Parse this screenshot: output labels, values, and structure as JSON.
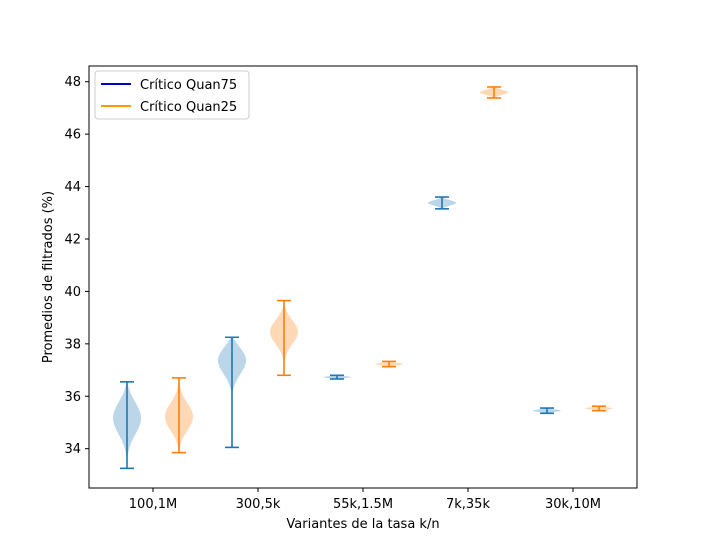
{
  "chart_data": {
    "type": "violin",
    "title": "",
    "xlabel": "Variantes de la tasa k/n",
    "ylabel": "Promedios de filtrados (%)",
    "categories": [
      "100,1M",
      "300,5k",
      "55k,1.5M",
      "7k,35k",
      "30k,10M"
    ],
    "y_ticks": [
      34,
      36,
      38,
      40,
      42,
      44,
      46,
      48
    ],
    "ylim": [
      32.5,
      48.6
    ],
    "legend_position": "top-left",
    "series": [
      {
        "name": "Crítico Quan75",
        "legend_color": "#0000cc",
        "line_color": "#1f77b4",
        "fill_color": "#1f77b4",
        "distributions": [
          {
            "min": 33.25,
            "max": 36.55,
            "mode": 35.25,
            "spread": 0.7
          },
          {
            "min": 34.05,
            "max": 38.25,
            "mode": 37.55,
            "spread": 0.55
          },
          {
            "min": 36.66,
            "max": 36.8,
            "mode": 36.73,
            "spread": 0.05
          },
          {
            "min": 43.15,
            "max": 43.6,
            "mode": 43.38,
            "spread": 0.12
          },
          {
            "min": 35.35,
            "max": 35.55,
            "mode": 35.45,
            "spread": 0.06
          }
        ]
      },
      {
        "name": "Crítico Quan25",
        "legend_color": "#ff9900",
        "line_color": "#ff7f0e",
        "fill_color": "#ff7f0e",
        "distributions": [
          {
            "min": 33.85,
            "max": 36.7,
            "mode": 35.2,
            "spread": 0.6
          },
          {
            "min": 36.8,
            "max": 39.65,
            "mode": 38.5,
            "spread": 0.5
          },
          {
            "min": 37.13,
            "max": 37.33,
            "mode": 37.23,
            "spread": 0.06
          },
          {
            "min": 47.38,
            "max": 47.8,
            "mode": 47.6,
            "spread": 0.12
          },
          {
            "min": 35.45,
            "max": 35.62,
            "mode": 35.54,
            "spread": 0.06
          }
        ]
      }
    ]
  }
}
